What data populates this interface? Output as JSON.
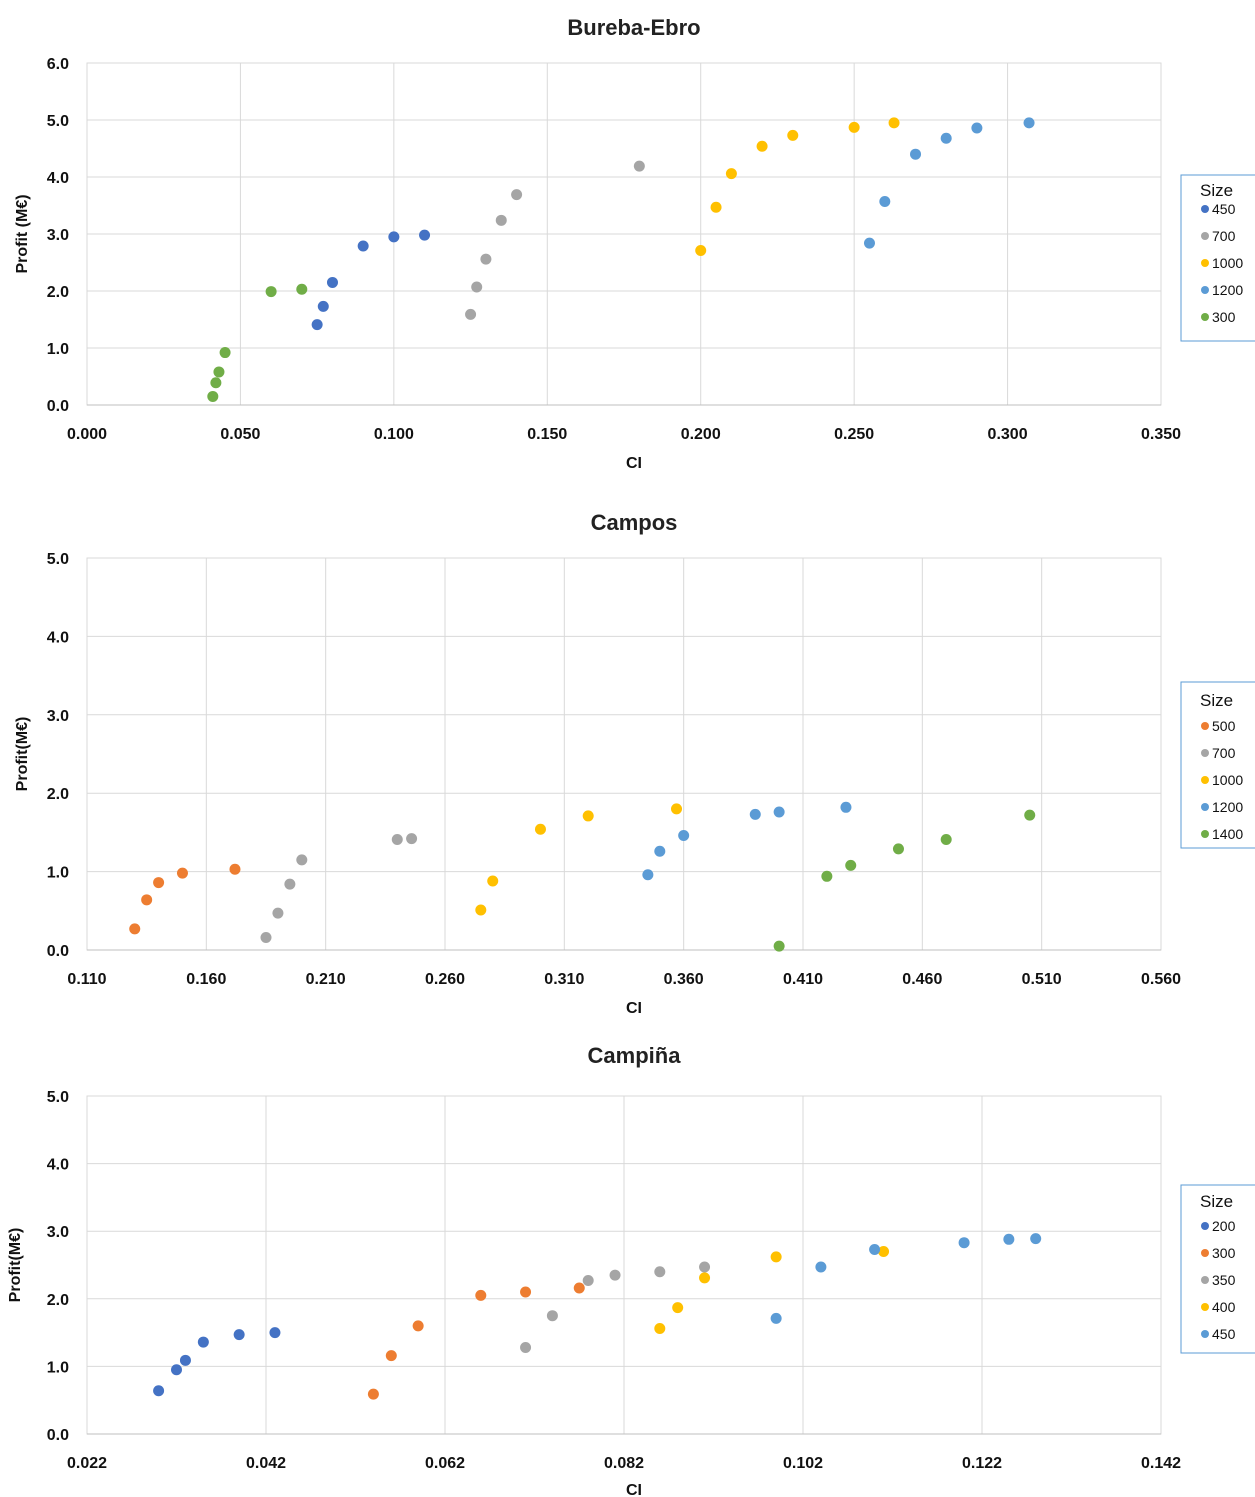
{
  "charts": [
    {
      "title": "Bureba-Ebro",
      "xlabel": "CI",
      "ylabel": "Profit (M€)"
    },
    {
      "title": "Campos",
      "xlabel": "CI",
      "ylabel": "Profit(M€)"
    },
    {
      "title": "Campiña",
      "xlabel": "CI",
      "ylabel": "Profit(M€)"
    }
  ],
  "chart_data": [
    {
      "type": "scatter",
      "title": "Bureba-Ebro",
      "xlabel": "CI",
      "ylabel": "Profit (M€)",
      "xlim": [
        0.0,
        0.35
      ],
      "ylim": [
        0.0,
        6.0
      ],
      "xticks": [
        "0.000",
        "0.050",
        "0.100",
        "0.150",
        "0.200",
        "0.250",
        "0.300",
        "0.350"
      ],
      "yticks": [
        "0.0",
        "1.0",
        "2.0",
        "3.0",
        "4.0",
        "5.0",
        "6.0"
      ],
      "grid": true,
      "legend_title": "Size",
      "legend_position": "right",
      "series": [
        {
          "name": "450",
          "color": "#4472C4",
          "points": [
            [
              0.075,
              1.41
            ],
            [
              0.077,
              1.73
            ],
            [
              0.08,
              2.15
            ],
            [
              0.09,
              2.79
            ],
            [
              0.1,
              2.95
            ],
            [
              0.11,
              2.98
            ]
          ]
        },
        {
          "name": "700",
          "color": "#A5A5A5",
          "points": [
            [
              0.125,
              1.59
            ],
            [
              0.127,
              2.07
            ],
            [
              0.13,
              2.56
            ],
            [
              0.135,
              3.24
            ],
            [
              0.14,
              3.69
            ],
            [
              0.18,
              4.19
            ]
          ]
        },
        {
          "name": "1000",
          "color": "#FFC000",
          "points": [
            [
              0.2,
              2.71
            ],
            [
              0.205,
              3.47
            ],
            [
              0.21,
              4.06
            ],
            [
              0.22,
              4.54
            ],
            [
              0.23,
              4.73
            ],
            [
              0.25,
              4.87
            ],
            [
              0.263,
              4.95
            ]
          ]
        },
        {
          "name": "1200",
          "color": "#5B9BD5",
          "points": [
            [
              0.255,
              2.84
            ],
            [
              0.26,
              3.57
            ],
            [
              0.27,
              4.4
            ],
            [
              0.28,
              4.68
            ],
            [
              0.29,
              4.86
            ],
            [
              0.307,
              4.95
            ]
          ]
        },
        {
          "name": "300",
          "color": "#70AD47",
          "points": [
            [
              0.041,
              0.15
            ],
            [
              0.042,
              0.39
            ],
            [
              0.043,
              0.58
            ],
            [
              0.045,
              0.92
            ],
            [
              0.06,
              1.99
            ],
            [
              0.07,
              2.03
            ]
          ]
        }
      ]
    },
    {
      "type": "scatter",
      "title": "Campos",
      "xlabel": "CI",
      "ylabel": "Profit(M€)",
      "xlim": [
        0.11,
        0.56
      ],
      "ylim": [
        0.0,
        5.0
      ],
      "xticks": [
        "0.110",
        "0.160",
        "0.210",
        "0.260",
        "0.310",
        "0.360",
        "0.410",
        "0.460",
        "0.510",
        "0.560"
      ],
      "yticks": [
        "0.0",
        "1.0",
        "2.0",
        "3.0",
        "4.0",
        "5.0"
      ],
      "grid": true,
      "legend_title": "Size",
      "legend_position": "right",
      "series": [
        {
          "name": "500",
          "color": "#ED7D31",
          "points": [
            [
              0.13,
              0.27
            ],
            [
              0.135,
              0.64
            ],
            [
              0.14,
              0.86
            ],
            [
              0.15,
              0.98
            ],
            [
              0.172,
              1.03
            ]
          ]
        },
        {
          "name": "700",
          "color": "#A5A5A5",
          "points": [
            [
              0.185,
              0.16
            ],
            [
              0.19,
              0.47
            ],
            [
              0.195,
              0.84
            ],
            [
              0.2,
              1.15
            ],
            [
              0.24,
              1.41
            ],
            [
              0.246,
              1.42
            ]
          ]
        },
        {
          "name": "1000",
          "color": "#FFC000",
          "points": [
            [
              0.275,
              0.51
            ],
            [
              0.28,
              0.88
            ],
            [
              0.3,
              1.54
            ],
            [
              0.32,
              1.71
            ],
            [
              0.357,
              1.8
            ]
          ]
        },
        {
          "name": "1200",
          "color": "#5B9BD5",
          "points": [
            [
              0.345,
              0.96
            ],
            [
              0.35,
              1.26
            ],
            [
              0.36,
              1.46
            ],
            [
              0.39,
              1.73
            ],
            [
              0.4,
              1.76
            ],
            [
              0.428,
              1.82
            ]
          ]
        },
        {
          "name": "1400",
          "color": "#70AD47",
          "points": [
            [
              0.4,
              0.05
            ],
            [
              0.42,
              0.94
            ],
            [
              0.43,
              1.08
            ],
            [
              0.45,
              1.29
            ],
            [
              0.47,
              1.41
            ],
            [
              0.505,
              1.72
            ]
          ]
        }
      ]
    },
    {
      "type": "scatter",
      "title": "Campiña",
      "xlabel": "CI",
      "ylabel": "Profit(M€)",
      "xlim": [
        0.022,
        0.142
      ],
      "ylim": [
        0.0,
        5.0
      ],
      "xticks": [
        "0.022",
        "0.042",
        "0.062",
        "0.082",
        "0.102",
        "0.122",
        "0.142"
      ],
      "yticks": [
        "0.0",
        "1.0",
        "2.0",
        "3.0",
        "4.0",
        "5.0"
      ],
      "grid": true,
      "legend_title": "Size",
      "legend_position": "right",
      "series": [
        {
          "name": "200",
          "color": "#4472C4",
          "points": [
            [
              0.03,
              0.64
            ],
            [
              0.032,
              0.95
            ],
            [
              0.033,
              1.09
            ],
            [
              0.035,
              1.36
            ],
            [
              0.039,
              1.47
            ],
            [
              0.043,
              1.5
            ]
          ]
        },
        {
          "name": "300",
          "color": "#ED7D31",
          "points": [
            [
              0.054,
              0.59
            ],
            [
              0.056,
              1.16
            ],
            [
              0.059,
              1.6
            ],
            [
              0.066,
              2.05
            ],
            [
              0.071,
              2.1
            ],
            [
              0.077,
              2.16
            ]
          ]
        },
        {
          "name": "350",
          "color": "#A5A5A5",
          "points": [
            [
              0.071,
              1.28
            ],
            [
              0.074,
              1.75
            ],
            [
              0.078,
              2.27
            ],
            [
              0.081,
              2.35
            ],
            [
              0.086,
              2.4
            ],
            [
              0.091,
              2.47
            ]
          ]
        },
        {
          "name": "400",
          "color": "#FFC000",
          "points": [
            [
              0.086,
              1.56
            ],
            [
              0.088,
              1.87
            ],
            [
              0.091,
              2.31
            ],
            [
              0.099,
              2.62
            ],
            [
              0.111,
              2.7
            ]
          ]
        },
        {
          "name": "450",
          "color": "#5B9BD5",
          "points": [
            [
              0.099,
              1.71
            ],
            [
              0.104,
              2.47
            ],
            [
              0.11,
              2.73
            ],
            [
              0.12,
              2.83
            ],
            [
              0.125,
              2.88
            ],
            [
              0.128,
              2.89
            ]
          ]
        }
      ]
    }
  ]
}
